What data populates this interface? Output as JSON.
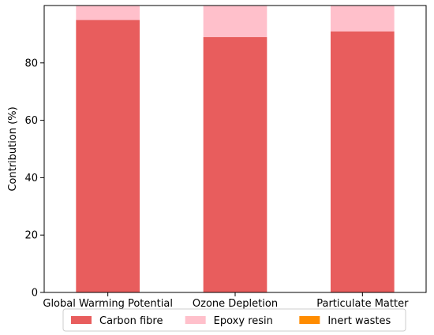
{
  "chart_data": {
    "type": "bar",
    "stacked": true,
    "title": "",
    "xlabel": "",
    "ylabel": "Contribution (%)",
    "ylim": [
      0,
      100
    ],
    "yticks": [
      0,
      20,
      40,
      60,
      80
    ],
    "grid": false,
    "legend_position": "bottom",
    "categories": [
      "Global Warming Potential",
      "Ozone Depletion",
      "Particulate Matter"
    ],
    "series": [
      {
        "name": "Carbon fibre",
        "color": "#e85d5d",
        "values": [
          95,
          89,
          91
        ]
      },
      {
        "name": "Epoxy resin",
        "color": "#ffc0cb",
        "values": [
          5,
          11,
          9
        ]
      },
      {
        "name": "Inert wastes",
        "color": "#ff8c00",
        "values": [
          0,
          0,
          0
        ]
      }
    ]
  }
}
